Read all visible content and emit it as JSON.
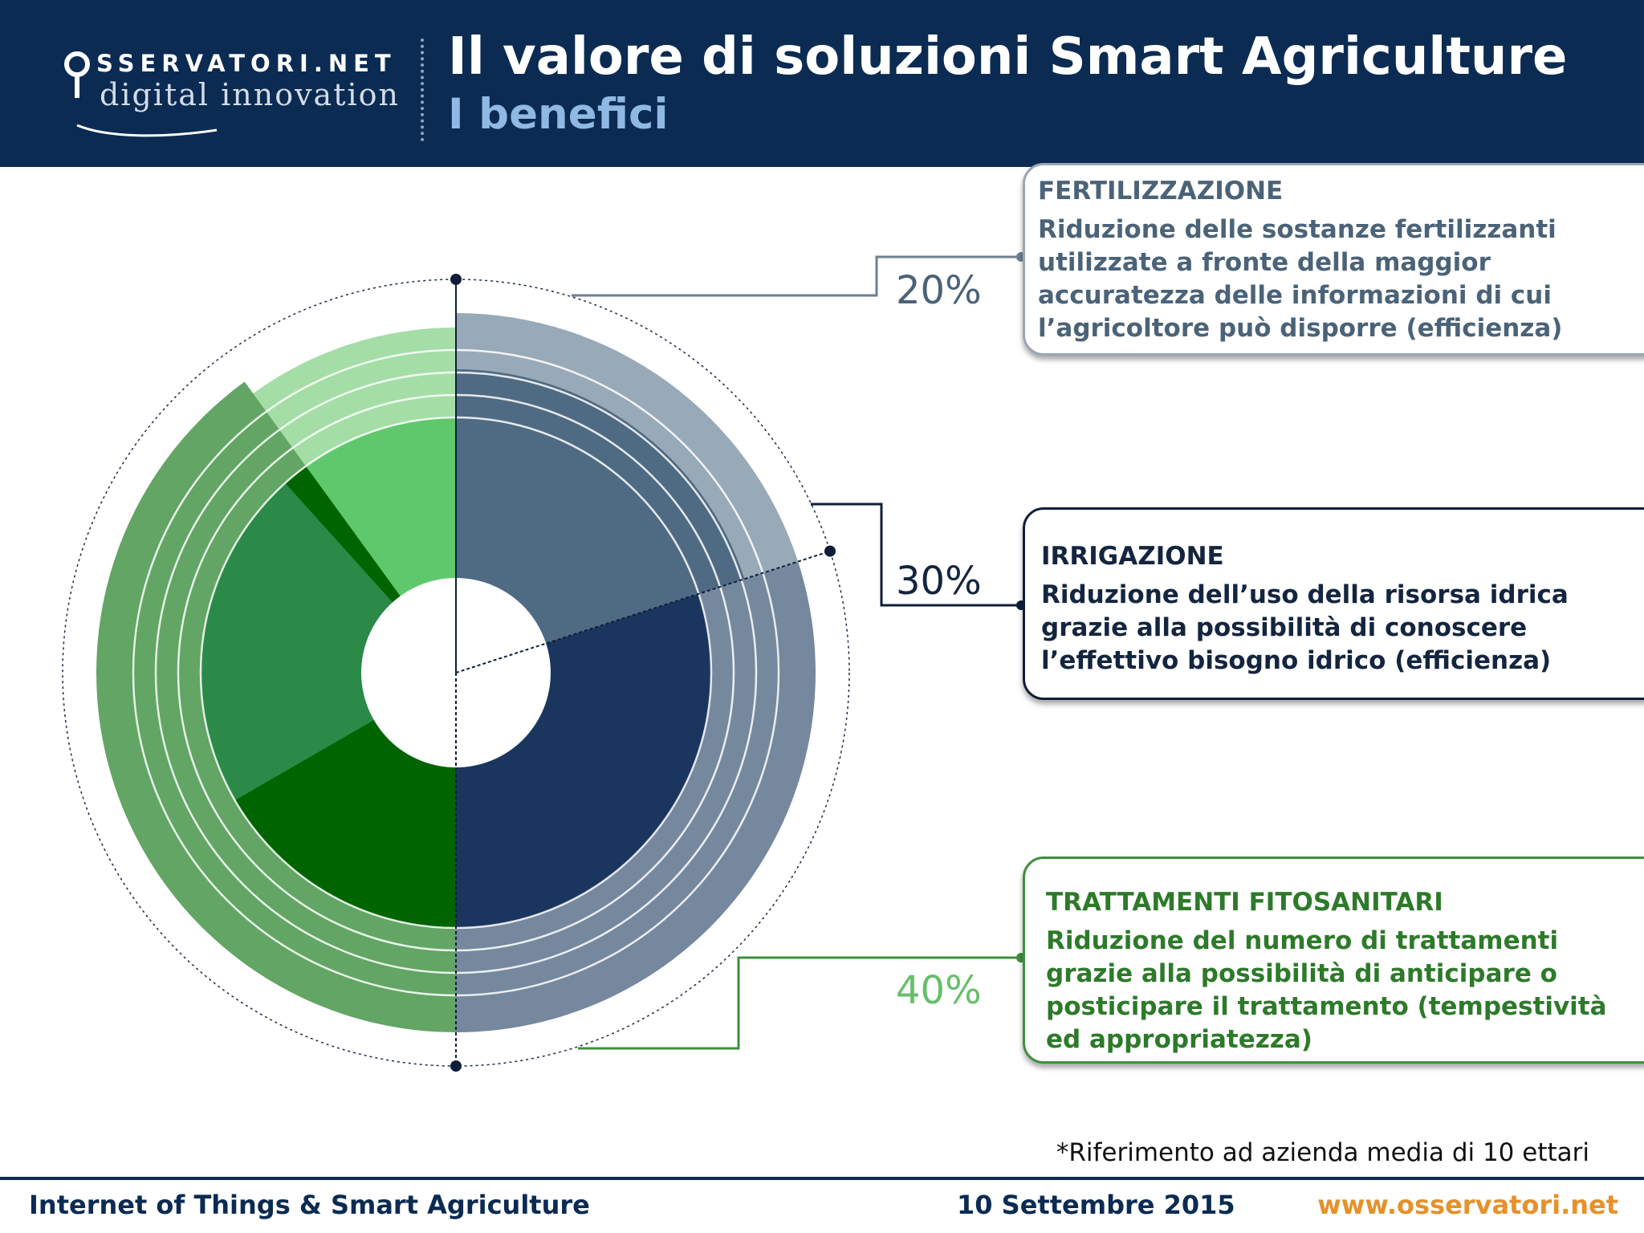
{
  "header": {
    "logo_top": "SSERVATORI.NET",
    "logo_bottom": "digital innovation",
    "title": "Il valore di soluzioni Smart Agriculture",
    "subtitle": "I benefici"
  },
  "colors": {
    "navy": "#0b2b52",
    "green": "#3f8f3c",
    "light_green": "#67bf6a",
    "slate": "#4b6378",
    "orange": "#e6912a"
  },
  "chart_data": {
    "type": "pie",
    "categories": [
      "FERTILIZZAZIONE",
      "IRRIGAZIONE",
      "TRATTAMENTI FITOSANITARI"
    ],
    "values": [
      20,
      30,
      40
    ],
    "unit": "%",
    "colors": [
      "#4f6b83",
      "#1b365e",
      "#006400"
    ]
  },
  "callouts": [
    {
      "title": "FERTILIZZAZIONE",
      "percent": "20%",
      "description": [
        "Riduzione delle sostanze fertilizzanti",
        "utilizzate a fronte della maggior",
        "accuratezza delle informazioni di cui",
        "l’agricoltore può disporre (efficienza)"
      ]
    },
    {
      "title": "IRRIGAZIONE",
      "percent": "30%",
      "description": [
        "Riduzione dell’uso della risorsa idrica",
        "grazie alla possibilità di conoscere",
        "l’effettivo bisogno idrico (efficienza)"
      ]
    },
    {
      "title": "TRATTAMENTI FITOSANITARI",
      "percent": "40%",
      "description": [
        "Riduzione del numero di trattamenti",
        "grazie alla possibilità di anticipare o",
        "posticipare il trattamento (tempestività",
        "ed appropriatezza)"
      ]
    }
  ],
  "footnote": "*Riferimento ad azienda media di 10 ettari",
  "footer": {
    "left": "Internet of Things & Smart Agriculture",
    "center": "10 Settembre 2015",
    "right": "www.osservatori.net"
  }
}
